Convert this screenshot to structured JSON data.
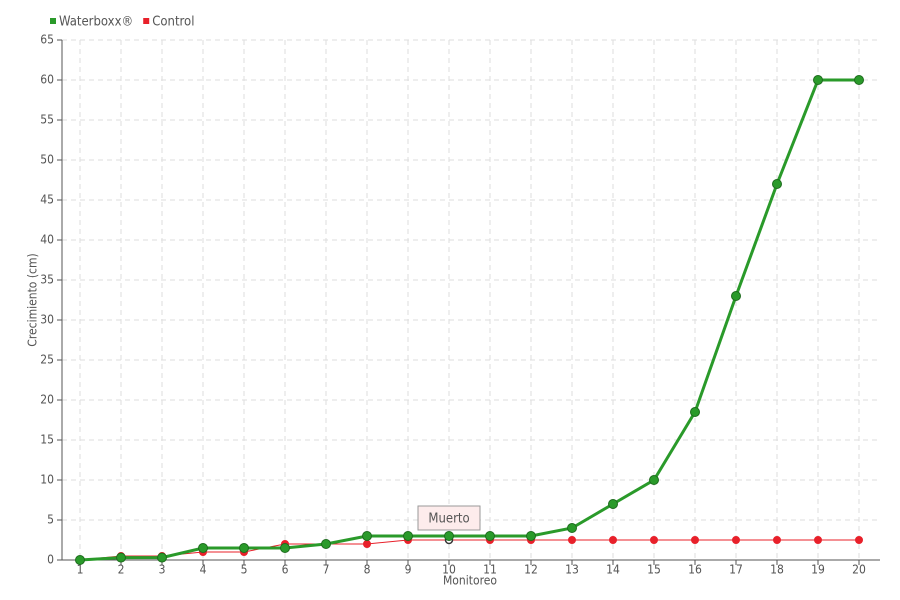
{
  "chart_data": {
    "type": "line",
    "x_label": "Monitoreo",
    "y_label": "Crecimiento (cm)",
    "categories": [
      "1",
      "2",
      "3",
      "4",
      "5",
      "6",
      "7",
      "8",
      "9",
      "10",
      "11",
      "12",
      "13",
      "14",
      "15",
      "16",
      "17",
      "18",
      "19",
      "20"
    ],
    "series": [
      {
        "name": "Waterboxx®",
        "color": "#2a9a2a",
        "values": [
          0,
          0.3,
          0.3,
          1.5,
          1.5,
          1.5,
          2,
          3,
          3,
          3,
          3,
          3,
          4,
          7,
          10,
          18.5,
          33,
          47,
          60,
          60
        ]
      },
      {
        "name": "Control",
        "color": "#e8202a",
        "values": [
          0,
          0.5,
          0.5,
          1,
          1,
          2,
          2,
          2,
          2.5,
          2.5,
          2.5,
          2.5,
          2.5,
          2.5,
          2.5,
          2.5,
          2.5,
          2.5,
          2.5,
          2.5
        ]
      }
    ],
    "annotations": [
      {
        "text": "Muerto",
        "category": "10",
        "series": "Control"
      }
    ],
    "ylim": [
      0,
      65
    ],
    "yticks": [
      0,
      5,
      10,
      15,
      20,
      25,
      30,
      35,
      40,
      45,
      50,
      55,
      60,
      65
    ],
    "grid": true,
    "legend": "top-left"
  }
}
